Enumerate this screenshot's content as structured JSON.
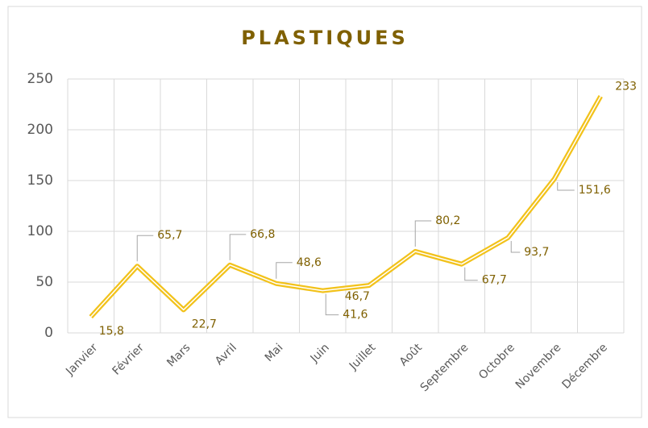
{
  "chart_data": {
    "type": "line",
    "title": "PLASTIQUES",
    "categories": [
      "Janvier",
      "Février",
      "Mars",
      "Avril",
      "Mai",
      "Juin",
      "Juillet",
      "Août",
      "Septembre",
      "Octobre",
      "Novembre",
      "Décembre"
    ],
    "series": [
      {
        "name": "Plastiques",
        "color": "#f2c21b",
        "values": [
          15.8,
          65.7,
          22.7,
          66.8,
          48.6,
          41.6,
          46.7,
          80.2,
          67.7,
          93.7,
          151.6,
          233
        ],
        "value_labels": [
          "15,8",
          "65,7",
          "22,7",
          "66,8",
          "48,6",
          "41,6",
          "46,7",
          "80,2",
          "67,7",
          "93,7",
          "151,6",
          "233"
        ]
      }
    ],
    "ylim": [
      0,
      250
    ],
    "yticks": [
      0,
      50,
      100,
      150,
      200,
      250
    ],
    "grid": true
  }
}
